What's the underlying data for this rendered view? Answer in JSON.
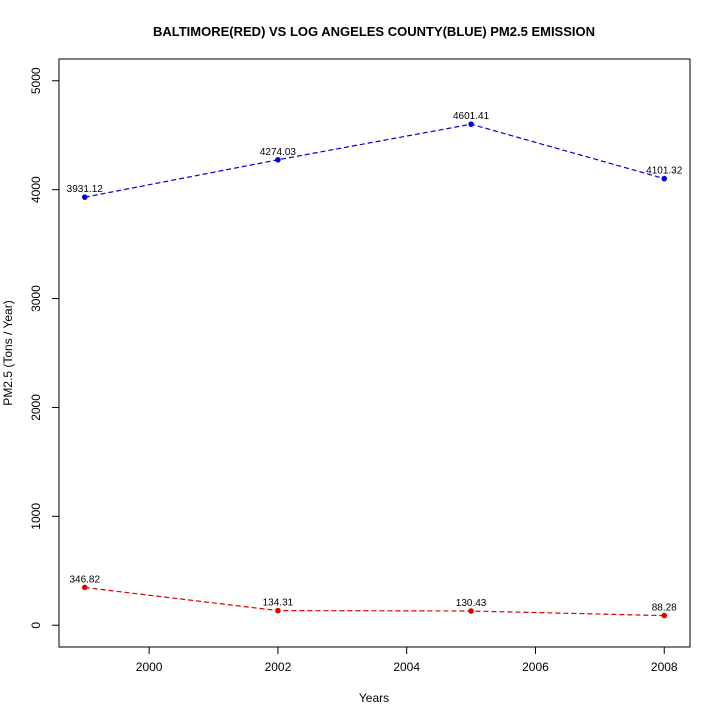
{
  "chart_data": {
    "type": "line",
    "title": "BALTIMORE(RED) VS LOG ANGELES COUNTY(BLUE) PM2.5 EMISSION",
    "xlabel": "Years",
    "ylabel": "PM2.5 (Tons / Year)",
    "xlim": [
      1998.6,
      2008.4
    ],
    "ylim": [
      -200,
      5200
    ],
    "x_ticks": [
      2000,
      2002,
      2004,
      2006,
      2008
    ],
    "y_ticks": [
      0,
      1000,
      2000,
      3000,
      4000,
      5000
    ],
    "grid": false,
    "series": [
      {
        "color": "#0000dd",
        "line_style": "dashed",
        "x": [
          1999,
          2002,
          2005,
          2008
        ],
        "y": [
          3931.12,
          4274.03,
          4601.41,
          4101.32
        ],
        "labels": [
          "3931.12",
          "4274.03",
          "4601.41",
          "4101.32"
        ]
      },
      {
        "color": "#dd0000",
        "line_style": "dashed",
        "x": [
          1999,
          2002,
          2005,
          2008
        ],
        "y": [
          346.82,
          134.31,
          130.43,
          88.28
        ],
        "labels": [
          "346.82",
          "134.31",
          "130.43",
          "88.28"
        ]
      }
    ]
  }
}
